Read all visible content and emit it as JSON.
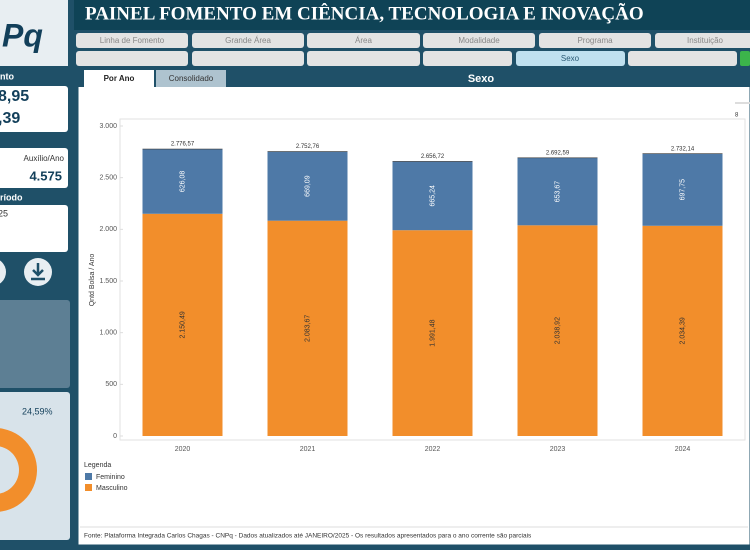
{
  "header": {
    "logo": "Pq",
    "title": "PAINEL FOMENTO EM CIÊNCIA, TECNOLOGIA E INOVAÇÃO"
  },
  "filters": [
    "Linha de Fomento",
    "Grande Área",
    "Área",
    "Modalidade",
    "Programa",
    "Instituição"
  ],
  "active_filter": "Sexo",
  "sidebar": {
    "section1": "nto",
    "value1": "8,95",
    "value2": ",39",
    "label3": "Auxílio/Ano",
    "value3": "4.575",
    "section2": "ríodo",
    "value4": "25",
    "pie_label": "24,59%",
    "pie_value": 24.59
  },
  "tabs": [
    "Por Ano",
    "Consolidado"
  ],
  "corner_note": "8",
  "footer": "Fonte: Plataforma Integrada Carlos Chagas - CNPq - Dados atualizados até JANEIRO/2025 - Os resultados apresentados para o ano corrente são parciais",
  "chart_data": {
    "type": "stacked_bar",
    "title": "Sexo",
    "y_label": "Qntd Bolsa / Ano",
    "categories": [
      "2020",
      "2021",
      "2022",
      "2023",
      "2024"
    ],
    "series": [
      {
        "name": "Masculino",
        "color": "#f28e2b",
        "values": [
          2150.49,
          2083.67,
          1991.48,
          2038.92,
          2034.39
        ],
        "value_labels": [
          "2.150,49",
          "2.083,67",
          "1.991,48",
          "2.038,92",
          "2.034,39"
        ]
      },
      {
        "name": "Feminino",
        "color": "#4e79a7",
        "values": [
          626.08,
          669.09,
          665.24,
          653.67,
          697.75
        ],
        "value_labels": [
          "626,08",
          "669,09",
          "665,24",
          "653,67",
          "697,75"
        ]
      }
    ],
    "totals": [
      2776.57,
      2752.76,
      2656.72,
      2692.59,
      2732.14
    ],
    "total_labels": [
      "2.776,57",
      "2.752,76",
      "2.656,72",
      "2.692,59",
      "2.732,14"
    ],
    "ylim": [
      0,
      3000
    ],
    "yticks": [
      0,
      500,
      {
        "value": 1000,
        "label": "1.000"
      },
      {
        "value": 1500,
        "label": "1.500"
      },
      {
        "value": 2000,
        "label": "2.000"
      },
      {
        "value": 2500,
        "label": "2.500"
      },
      {
        "value": 3000,
        "label": "3.000"
      }
    ],
    "legend_title": "Legenda",
    "legend_position": "bottom-left"
  }
}
